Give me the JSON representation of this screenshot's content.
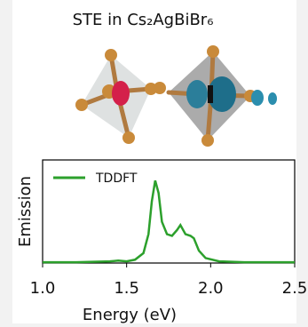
{
  "chart_data": {
    "type": "line",
    "title": "STE in Cs₂AgBiBr₆",
    "xlabel": "Energy (eV)",
    "ylabel": "Emission",
    "x": [
      1.0,
      1.2,
      1.4,
      1.45,
      1.5,
      1.55,
      1.6,
      1.63,
      1.65,
      1.67,
      1.69,
      1.71,
      1.74,
      1.77,
      1.8,
      1.82,
      1.85,
      1.88,
      1.9,
      1.93,
      1.97,
      2.05,
      2.2,
      2.5
    ],
    "series": [
      {
        "name": "TDDFT",
        "color": "#2ca02c",
        "values": [
          0.01,
          0.01,
          0.02,
          0.03,
          0.02,
          0.04,
          0.12,
          0.35,
          0.75,
          1.0,
          0.85,
          0.5,
          0.35,
          0.33,
          0.4,
          0.46,
          0.35,
          0.33,
          0.3,
          0.15,
          0.06,
          0.02,
          0.01,
          0.01
        ]
      }
    ],
    "xlim": [
      1.0,
      2.5
    ],
    "xticks": [
      {
        "value": 1.0,
        "label": "1.0"
      },
      1.5,
      {
        "value": 2.0,
        "label": "2.0"
      },
      2.5
    ],
    "ylim": [
      0,
      1.25
    ],
    "legend": "upper-left"
  }
}
